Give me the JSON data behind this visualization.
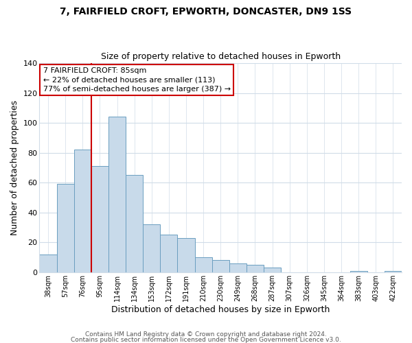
{
  "title": "7, FAIRFIELD CROFT, EPWORTH, DONCASTER, DN9 1SS",
  "subtitle": "Size of property relative to detached houses in Epworth",
  "xlabel": "Distribution of detached houses by size in Epworth",
  "ylabel": "Number of detached properties",
  "bar_labels": [
    "38sqm",
    "57sqm",
    "76sqm",
    "95sqm",
    "114sqm",
    "134sqm",
    "153sqm",
    "172sqm",
    "191sqm",
    "210sqm",
    "230sqm",
    "249sqm",
    "268sqm",
    "287sqm",
    "307sqm",
    "326sqm",
    "345sqm",
    "364sqm",
    "383sqm",
    "403sqm",
    "422sqm"
  ],
  "bar_values": [
    12,
    59,
    82,
    71,
    104,
    65,
    32,
    25,
    23,
    10,
    8,
    6,
    5,
    3,
    0,
    0,
    0,
    0,
    1,
    0,
    1
  ],
  "bar_color": "#c8daea",
  "bar_edge_color": "#6a9ec0",
  "vline_color": "#cc0000",
  "vline_x_index": 2,
  "ylim": [
    0,
    140
  ],
  "yticks": [
    0,
    20,
    40,
    60,
    80,
    100,
    120,
    140
  ],
  "annotation_title": "7 FAIRFIELD CROFT: 85sqm",
  "annotation_line1": "← 22% of detached houses are smaller (113)",
  "annotation_line2": "77% of semi-detached houses are larger (387) →",
  "annotation_box_color": "#cc0000",
  "footer_line1": "Contains HM Land Registry data © Crown copyright and database right 2024.",
  "footer_line2": "Contains public sector information licensed under the Open Government Licence v3.0.",
  "bg_color": "#ffffff",
  "plot_bg_color": "#ffffff",
  "grid_color": "#d0dce8"
}
